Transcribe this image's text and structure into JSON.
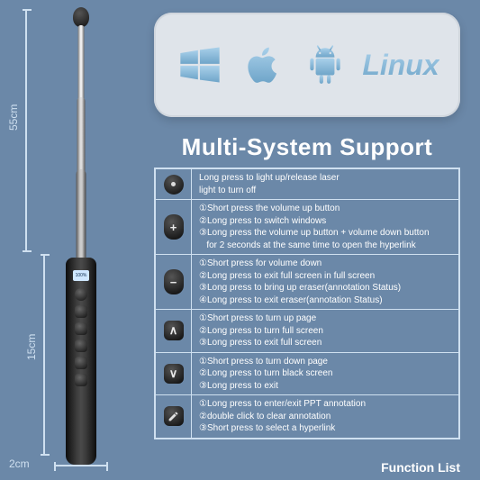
{
  "background_color": "#6b88a8",
  "os_panel": {
    "bg": "#dfe4ea",
    "icons": [
      "windows",
      "apple",
      "android"
    ],
    "linux_label": "Linux",
    "icon_gradient_from": "#a9d0ea",
    "icon_gradient_to": "#6fa5c9"
  },
  "title": "Multi-System Support",
  "dimensions": {
    "upper": "55cm",
    "lower": "15cm",
    "width": "2cm",
    "line_color": "#cfe0f0"
  },
  "table": {
    "border_color": "#cfe0f0",
    "text_color": "#ffffff",
    "text_fontsize": 10,
    "rows": [
      {
        "icon": "laser",
        "lines": [
          "Long press to light up/release laser",
          "light to turn off"
        ]
      },
      {
        "icon": "plus",
        "lines": [
          "①Short press the volume up button",
          "②Long press to switch windows",
          "③Long press the volume up button + volume down button",
          "   for 2 seconds at the same time to open the hyperlink"
        ]
      },
      {
        "icon": "minus",
        "lines": [
          "①Short press for volume down",
          "②Long press to exit full screen in full screen",
          "③Long press to bring up eraser(annotation Status)",
          "④Long press to exit eraser(annotation Status)"
        ]
      },
      {
        "icon": "up",
        "lines": [
          "①Short press to turn up page",
          "②Long press to turn full screen",
          "③Long press to exit full screen"
        ]
      },
      {
        "icon": "down",
        "lines": [
          "①Short press to turn down page",
          "②Long press to turn black screen",
          "③Long press to exit"
        ]
      },
      {
        "icon": "pen",
        "lines": [
          "①Long press to enter/exit PPT annotation",
          "②double click to clear annotation",
          "③Short press to select a hyperlink"
        ]
      }
    ]
  },
  "footer": "Function List",
  "product": {
    "screen_text": "100%"
  }
}
